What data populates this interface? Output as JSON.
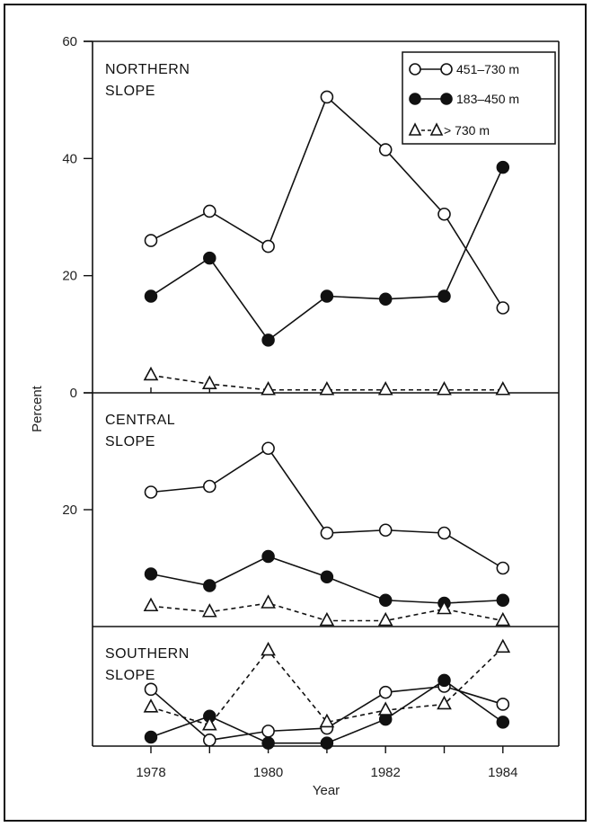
{
  "chart_data": {
    "type": "line",
    "xlabel": "Year",
    "ylabel": "Percent",
    "x": [
      1978,
      1979,
      1980,
      1981,
      1982,
      1983,
      1984
    ],
    "x_tick_labels": [
      "1978",
      "1980",
      "1982",
      "1984"
    ],
    "xlim": [
      1977,
      1985
    ],
    "legend": {
      "placement": "top-right",
      "entries": [
        {
          "label": "451–730 m",
          "marker": "open-circle",
          "line": "solid"
        },
        {
          "label": "183–450 m",
          "marker": "filled-circle",
          "line": "solid"
        },
        {
          "label": "> 730 m",
          "marker": "open-triangle",
          "line": "dashed"
        }
      ]
    },
    "panels": [
      {
        "title_line1": "NORTHERN",
        "title_line2": "SLOPE",
        "ylim": [
          0,
          60
        ],
        "yticks": [
          0,
          20,
          40,
          60
        ],
        "ytick_labels": [
          "0",
          "20",
          "40",
          "60"
        ],
        "series": [
          {
            "name": "451–730 m",
            "values": [
              26,
              31,
              25,
              50.5,
              41.5,
              30.5,
              14.5
            ]
          },
          {
            "name": "183–450 m",
            "values": [
              16.5,
              23,
              9,
              16.5,
              16,
              16.5,
              38.5
            ]
          },
          {
            "name": "> 730 m",
            "values": [
              3,
              1.5,
              0.5,
              0.5,
              0.5,
              0.5,
              0.5
            ]
          }
        ]
      },
      {
        "title_line1": "CENTRAL",
        "title_line2": "SLOPE",
        "ylim": [
          0,
          40
        ],
        "yticks": [
          20
        ],
        "ytick_labels": [
          "20"
        ],
        "series": [
          {
            "name": "451–730 m",
            "values": [
              23,
              24,
              30.5,
              16,
              16.5,
              16,
              10
            ]
          },
          {
            "name": "183–450 m",
            "values": [
              9,
              7,
              12,
              8.5,
              4.5,
              4,
              4.5
            ]
          },
          {
            "name": "> 730 m",
            "values": [
              3.5,
              2.5,
              4,
              1,
              1,
              3,
              1
            ]
          }
        ]
      },
      {
        "title_line1": "SOUTHERN",
        "title_line2": "SLOPE",
        "ylim": [
          0,
          20
        ],
        "yticks": [],
        "ytick_labels": [],
        "series": [
          {
            "name": "451–730 m",
            "values": [
              9.5,
              1,
              2.5,
              3,
              9,
              10,
              7
            ]
          },
          {
            "name": "183–450 m",
            "values": [
              1.5,
              5,
              0.5,
              0.5,
              4.5,
              11,
              4
            ]
          },
          {
            "name": "> 730 m",
            "values": [
              6.5,
              3.5,
              16,
              4,
              6,
              7,
              16.5
            ]
          }
        ]
      }
    ]
  }
}
